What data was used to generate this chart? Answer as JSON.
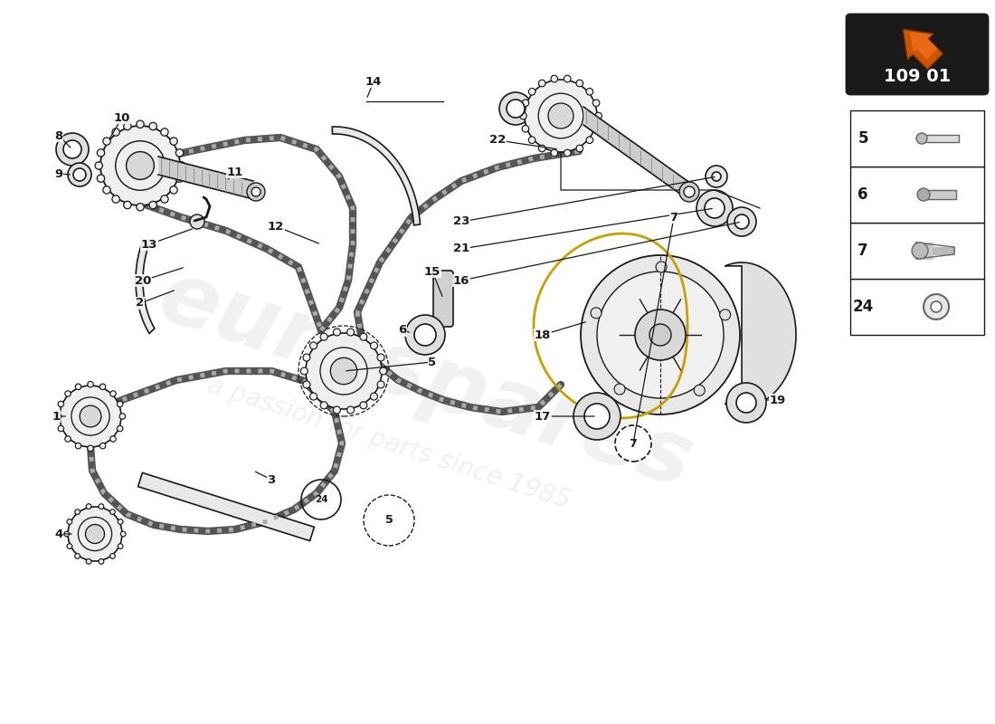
{
  "bg_color": "#ffffff",
  "dc": "#1a1a1a",
  "wc": "#cccccc",
  "ac": "#c8a000",
  "watermark1": "eurospares",
  "watermark2": "a passion for parts since 1985",
  "part_number": "109 01",
  "table_rows": [
    {
      "num": "24",
      "type": "washer"
    },
    {
      "num": "7",
      "type": "bolt_flanged"
    },
    {
      "num": "6",
      "type": "bolt_hex"
    },
    {
      "num": "5",
      "type": "bolt_long"
    }
  ]
}
